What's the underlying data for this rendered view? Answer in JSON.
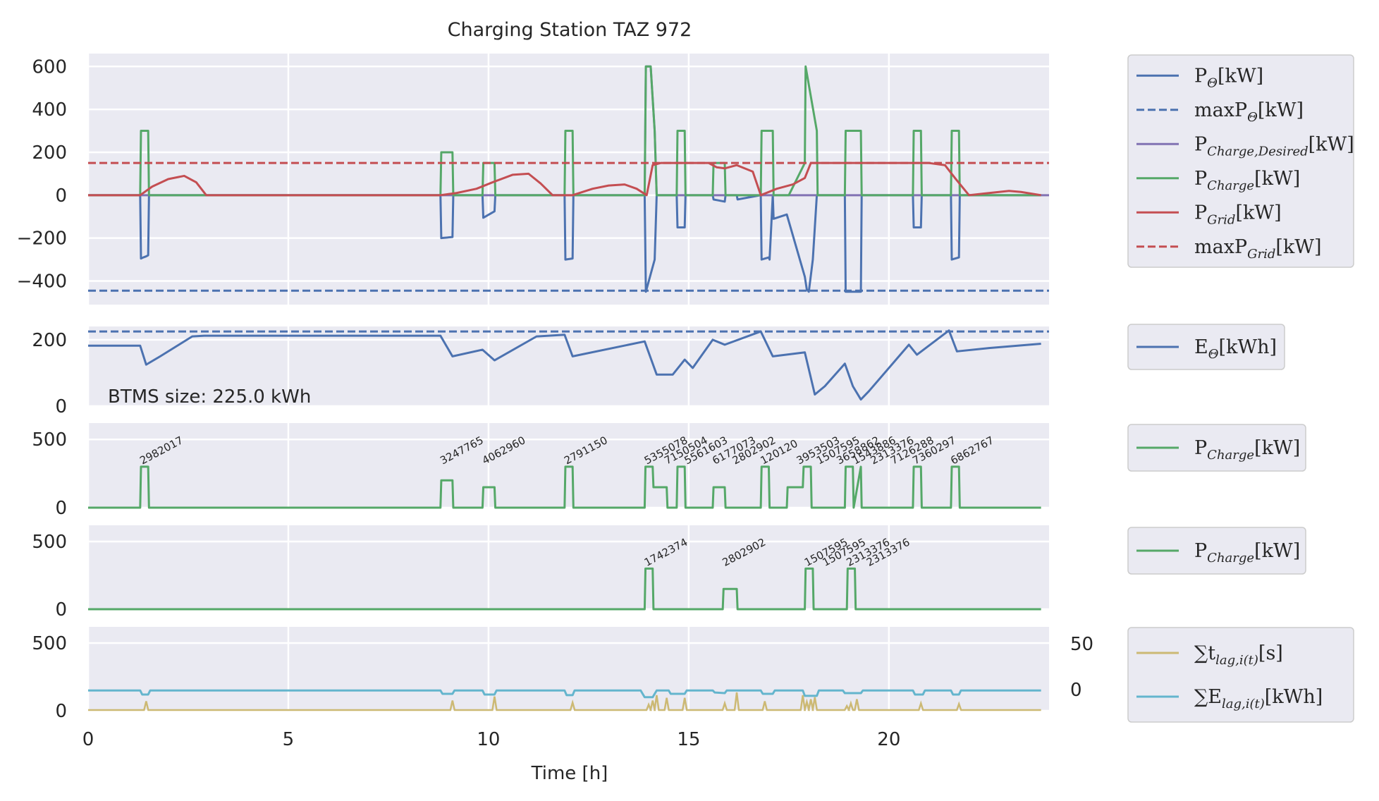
{
  "colors": {
    "background": "#eaeaf2",
    "grid": "#ffffff",
    "blue": "#4c72b0",
    "red": "#c44e52",
    "green": "#55a868",
    "purple": "#8172b3",
    "gold": "#ccb974",
    "cyan": "#64b5cd"
  },
  "chart_data": [
    {
      "type": "line",
      "panel": 1,
      "title": "Charging Station TAZ 972",
      "xlim": [
        0,
        24
      ],
      "ylim": [
        -510,
        660
      ],
      "yticks": [
        "600",
        "400",
        "200",
        "0",
        "−200",
        "−400"
      ],
      "ytick_values": [
        600,
        400,
        200,
        0,
        -200,
        -400
      ],
      "grid": true,
      "legend_placement": "outside-right",
      "legend": [
        "P_Θ[kW]",
        "maxP_Θ[kW]",
        "P_Charge,Desired[kW]",
        "P_Charge[kW]",
        "P_Grid[kW]",
        "maxP_Grid[kW]"
      ],
      "series": [
        {
          "name": "P_Θ[kW]",
          "color": "#4c72b0",
          "style": "solid",
          "x": [
            0,
            1.3,
            1.32,
            1.38,
            1.45,
            1.5,
            1.52,
            8.8,
            8.82,
            9.1,
            9.12,
            9.85,
            9.87,
            10.15,
            10.17,
            11.9,
            11.92,
            12.1,
            12.12,
            13.9,
            13.93,
            14.15,
            14.2,
            14.7,
            14.72,
            14.9,
            14.92,
            15.6,
            15.62,
            15.9,
            15.92,
            16.2,
            16.22,
            16.8,
            16.82,
            17,
            17.02,
            17.1,
            17.12,
            17.45,
            17.9,
            17.95,
            18,
            18.1,
            18.15,
            18.2,
            18.22,
            18.9,
            18.92,
            19.3,
            19.32,
            20.6,
            20.62,
            20.8,
            20.82,
            21.55,
            21.57,
            21.75,
            21.77,
            23.8
          ],
          "y": [
            0,
            0,
            -295,
            -290,
            -285,
            -280,
            0,
            0,
            -200,
            -195,
            0,
            0,
            -105,
            -75,
            0,
            0,
            -300,
            -295,
            0,
            0,
            -450,
            -300,
            0,
            0,
            -150,
            -150,
            0,
            0,
            -20,
            -30,
            0,
            0,
            -20,
            0,
            -300,
            -290,
            -300,
            0,
            -110,
            -90,
            -380,
            -440,
            -450,
            -300,
            -150,
            0,
            0,
            0,
            -450,
            -450,
            0,
            0,
            -150,
            -150,
            0,
            0,
            -300,
            -290,
            0,
            0
          ]
        },
        {
          "name": "maxP_Θ[kW]",
          "color": "#4c72b0",
          "style": "dashed",
          "x": [
            0,
            24
          ],
          "y": [
            -445,
            -445
          ]
        },
        {
          "name": "P_Charge,Desired[kW]",
          "color": "#8172b3",
          "style": "solid",
          "x": [
            0,
            13.9,
            13.93,
            14.05,
            14.1,
            14.15,
            14.2,
            24
          ],
          "y": [
            0,
            0,
            600,
            600,
            450,
            300,
            0,
            0
          ]
        },
        {
          "name": "P_Charge[kW]",
          "color": "#55a868",
          "style": "solid",
          "x": [
            0,
            1.3,
            1.32,
            1.5,
            1.52,
            8.8,
            8.82,
            9.1,
            9.12,
            9.85,
            9.87,
            10.15,
            10.17,
            11.9,
            11.92,
            12.1,
            12.12,
            13.9,
            13.93,
            14.05,
            14.1,
            14.15,
            14.2,
            14.7,
            14.72,
            14.9,
            14.92,
            15.6,
            15.62,
            15.9,
            15.92,
            16.8,
            16.82,
            17.1,
            17.12,
            17.5,
            17.9,
            17.92,
            18.2,
            18.22,
            18.9,
            18.92,
            19.3,
            19.32,
            20.6,
            20.62,
            20.8,
            20.82,
            21.55,
            21.57,
            21.75,
            21.77,
            23.8
          ],
          "y": [
            0,
            0,
            300,
            300,
            0,
            0,
            200,
            200,
            0,
            0,
            150,
            150,
            0,
            0,
            300,
            300,
            0,
            0,
            600,
            600,
            450,
            300,
            0,
            0,
            300,
            300,
            0,
            0,
            150,
            150,
            0,
            0,
            300,
            300,
            0,
            0,
            150,
            600,
            300,
            0,
            0,
            300,
            300,
            0,
            0,
            300,
            300,
            0,
            0,
            300,
            300,
            0,
            0
          ]
        },
        {
          "name": "P_Grid[kW]",
          "color": "#c44e52",
          "style": "solid",
          "x": [
            0,
            1.3,
            1.6,
            2,
            2.4,
            2.7,
            2.95,
            8.8,
            9.2,
            9.7,
            10.1,
            10.6,
            11,
            11.3,
            11.6,
            12.1,
            12.6,
            13,
            13.4,
            13.7,
            13.95,
            14.1,
            14.3,
            15,
            15.5,
            15.7,
            15.9,
            16.2,
            16.6,
            16.8,
            17.2,
            17.6,
            17.9,
            18.05,
            18.3,
            19,
            20,
            21,
            21.4,
            21.65,
            22,
            22.5,
            23,
            23.3,
            23.8
          ],
          "y": [
            0,
            0,
            40,
            75,
            90,
            60,
            0,
            0,
            10,
            30,
            60,
            95,
            100,
            55,
            0,
            0,
            30,
            45,
            50,
            30,
            0,
            140,
            150,
            150,
            150,
            130,
            125,
            140,
            110,
            0,
            30,
            50,
            80,
            150,
            150,
            150,
            150,
            150,
            140,
            80,
            0,
            10,
            20,
            15,
            0
          ]
        },
        {
          "name": "maxP_Grid[kW]",
          "color": "#c44e52",
          "style": "dashed",
          "x": [
            0,
            24
          ],
          "y": [
            150,
            150
          ]
        }
      ]
    },
    {
      "type": "line",
      "panel": 2,
      "xlim": [
        0,
        24
      ],
      "ylim": [
        0,
        240
      ],
      "yticks": [
        "200",
        "0"
      ],
      "ytick_values": [
        200,
        0
      ],
      "grid": true,
      "annotation": "BTMS size: 225.0 kWh",
      "legend": [
        "E_Θ[kWh]"
      ],
      "series": [
        {
          "name": "E_Θ[kWh]",
          "color": "#4c72b0",
          "style": "solid",
          "x": [
            0,
            1.3,
            1.45,
            1.8,
            2.6,
            2.9,
            8.8,
            9.1,
            9.85,
            10.15,
            11.2,
            11.9,
            12.1,
            13.9,
            14.2,
            14.6,
            14.9,
            15.1,
            15.6,
            15.7,
            15.9,
            16.8,
            17.1,
            17.9,
            18.15,
            18.4,
            18.9,
            19.1,
            19.3,
            19.5,
            20.5,
            20.7,
            21.5,
            21.7,
            22.5,
            23.8
          ],
          "y": [
            182,
            182,
            125,
            150,
            210,
            212,
            212,
            150,
            170,
            138,
            210,
            215,
            150,
            195,
            95,
            95,
            140,
            115,
            200,
            195,
            185,
            225,
            150,
            162,
            35,
            60,
            128,
            60,
            20,
            45,
            185,
            155,
            228,
            165,
            175,
            188
          ]
        },
        {
          "name": "BTMS size",
          "color": "#4c72b0",
          "style": "dashed",
          "x": [
            0,
            24
          ],
          "y": [
            225,
            225
          ]
        }
      ]
    },
    {
      "type": "line",
      "panel": 3,
      "xlim": [
        0,
        24
      ],
      "ylim": [
        0,
        620
      ],
      "yticks": [
        "500",
        "0"
      ],
      "ytick_values": [
        500,
        0
      ],
      "grid": true,
      "legend": [
        "P_Charge[kW]"
      ],
      "series": [
        {
          "name": "P_Charge[kW]",
          "color": "#55a868",
          "style": "solid",
          "x": [
            0,
            1.3,
            1.32,
            1.5,
            1.52,
            8.8,
            8.82,
            9.1,
            9.12,
            9.85,
            9.87,
            10.15,
            10.17,
            11.9,
            11.92,
            12.1,
            12.12,
            13.9,
            13.92,
            14.1,
            14.12,
            14.45,
            14.47,
            14.7,
            14.72,
            14.9,
            14.92,
            15.6,
            15.62,
            15.9,
            15.92,
            16.8,
            16.82,
            17,
            17.02,
            17.45,
            17.47,
            17.85,
            17.87,
            18.05,
            18.07,
            18.9,
            18.92,
            19.1,
            19.12,
            19.3,
            19.32,
            20.6,
            20.62,
            20.8,
            20.82,
            21.55,
            21.57,
            21.75,
            21.77,
            23.8
          ],
          "y": [
            0,
            0,
            300,
            300,
            0,
            0,
            200,
            200,
            0,
            0,
            150,
            150,
            0,
            0,
            300,
            300,
            0,
            0,
            300,
            300,
            150,
            150,
            0,
            0,
            300,
            300,
            0,
            0,
            150,
            150,
            0,
            0,
            300,
            300,
            0,
            0,
            150,
            150,
            300,
            300,
            0,
            0,
            300,
            300,
            0,
            300,
            0,
            0,
            300,
            300,
            0,
            0,
            300,
            300,
            0,
            0
          ]
        }
      ],
      "labels": [
        {
          "x": 1.3,
          "text": "2982017"
        },
        {
          "x": 8.8,
          "text": "3247765"
        },
        {
          "x": 9.85,
          "text": "4062960"
        },
        {
          "x": 11.9,
          "text": "2791150"
        },
        {
          "x": 13.9,
          "text": "5355078"
        },
        {
          "x": 14.4,
          "text": "7150504"
        },
        {
          "x": 14.9,
          "text": "5561603"
        },
        {
          "x": 15.6,
          "text": "6177073"
        },
        {
          "x": 16.1,
          "text": "2802902"
        },
        {
          "x": 16.8,
          "text": "120120"
        },
        {
          "x": 17.7,
          "text": "3953503"
        },
        {
          "x": 18.2,
          "text": "1507595"
        },
        {
          "x": 18.7,
          "text": "3658862"
        },
        {
          "x": 19.1,
          "text": "1543886"
        },
        {
          "x": 19.55,
          "text": "2313376"
        },
        {
          "x": 20.05,
          "text": "7126288"
        },
        {
          "x": 20.6,
          "text": "7360297"
        },
        {
          "x": 21.55,
          "text": "6862767"
        }
      ]
    },
    {
      "type": "line",
      "panel": 4,
      "xlim": [
        0,
        24
      ],
      "ylim": [
        0,
        620
      ],
      "yticks": [
        "500",
        "0"
      ],
      "ytick_values": [
        500,
        0
      ],
      "grid": true,
      "legend": [
        "P_Charge[kW]"
      ],
      "series": [
        {
          "name": "P_Charge[kW]",
          "color": "#55a868",
          "style": "solid",
          "x": [
            0,
            13.9,
            13.92,
            14.1,
            14.12,
            15.85,
            15.87,
            16.2,
            16.22,
            17.9,
            17.92,
            18.1,
            18.12,
            18.95,
            18.97,
            19.15,
            19.17,
            23.8
          ],
          "y": [
            0,
            0,
            300,
            300,
            0,
            0,
            150,
            150,
            0,
            0,
            300,
            300,
            0,
            0,
            300,
            300,
            0,
            0
          ]
        }
      ],
      "labels": [
        {
          "x": 13.9,
          "text": "1742374"
        },
        {
          "x": 15.85,
          "text": "2802902"
        },
        {
          "x": 17.9,
          "text": "1507595"
        },
        {
          "x": 18.35,
          "text": "1507595"
        },
        {
          "x": 18.95,
          "text": "2313376"
        },
        {
          "x": 19.45,
          "text": "2313376"
        }
      ]
    },
    {
      "type": "line",
      "panel": 5,
      "xlim": [
        0,
        24
      ],
      "ylim": [
        0,
        620
      ],
      "yticks": [
        "500",
        "0"
      ],
      "ytick_values": [
        500,
        0
      ],
      "y2ticks": [
        "50",
        "0"
      ],
      "y2tick_values": [
        50,
        0
      ],
      "grid": true,
      "xticks": [
        "0",
        "5",
        "10",
        "15",
        "20"
      ],
      "xtick_values": [
        0,
        5,
        10,
        15,
        20
      ],
      "xlabel": "Time [h]",
      "legend": [
        "∑t_lag,i(t)[s]",
        "∑E_lag,i(t)[kWh]"
      ],
      "series": [
        {
          "name": "∑t_lag,i(t)[s]",
          "color": "#ccb974",
          "style": "solid",
          "spikes": [
            [
              1.45,
              65
            ],
            [
              9.1,
              70
            ],
            [
              10.15,
              100
            ],
            [
              12.1,
              55
            ],
            [
              14.0,
              40
            ],
            [
              14.1,
              70
            ],
            [
              14.2,
              110
            ],
            [
              14.45,
              90
            ],
            [
              14.9,
              90
            ],
            [
              15.9,
              50
            ],
            [
              16.2,
              130
            ],
            [
              16.9,
              65
            ],
            [
              17.85,
              110
            ],
            [
              17.95,
              60
            ],
            [
              18.05,
              80
            ],
            [
              18.15,
              95
            ],
            [
              18.95,
              30
            ],
            [
              19.05,
              50
            ],
            [
              19.2,
              80
            ],
            [
              20.8,
              50
            ],
            [
              21.75,
              45
            ]
          ]
        },
        {
          "name": "∑E_lag,i(t)[kWh]",
          "color": "#64b5cd",
          "style": "solid",
          "x": [
            0,
            1.3,
            1.35,
            1.5,
            1.55,
            8.8,
            8.85,
            9.1,
            9.15,
            9.85,
            9.9,
            10.15,
            10.2,
            11.9,
            11.95,
            12.1,
            12.15,
            13.8,
            13.9,
            14.1,
            14.2,
            14.5,
            14.55,
            14.9,
            14.95,
            15.6,
            15.65,
            15.9,
            15.95,
            16.8,
            16.85,
            17.1,
            17.15,
            17.85,
            17.9,
            18.2,
            18.25,
            18.85,
            18.9,
            19.3,
            19.35,
            20.6,
            20.65,
            20.85,
            20.9,
            21.55,
            21.6,
            21.75,
            21.8,
            23.8
          ],
          "y": [
            150,
            150,
            120,
            120,
            150,
            150,
            125,
            125,
            150,
            150,
            120,
            120,
            150,
            150,
            115,
            115,
            150,
            150,
            100,
            100,
            150,
            150,
            125,
            125,
            150,
            150,
            135,
            130,
            150,
            150,
            125,
            125,
            150,
            150,
            110,
            110,
            150,
            150,
            130,
            130,
            150,
            150,
            120,
            120,
            150,
            150,
            120,
            120,
            150,
            150
          ]
        }
      ]
    }
  ]
}
